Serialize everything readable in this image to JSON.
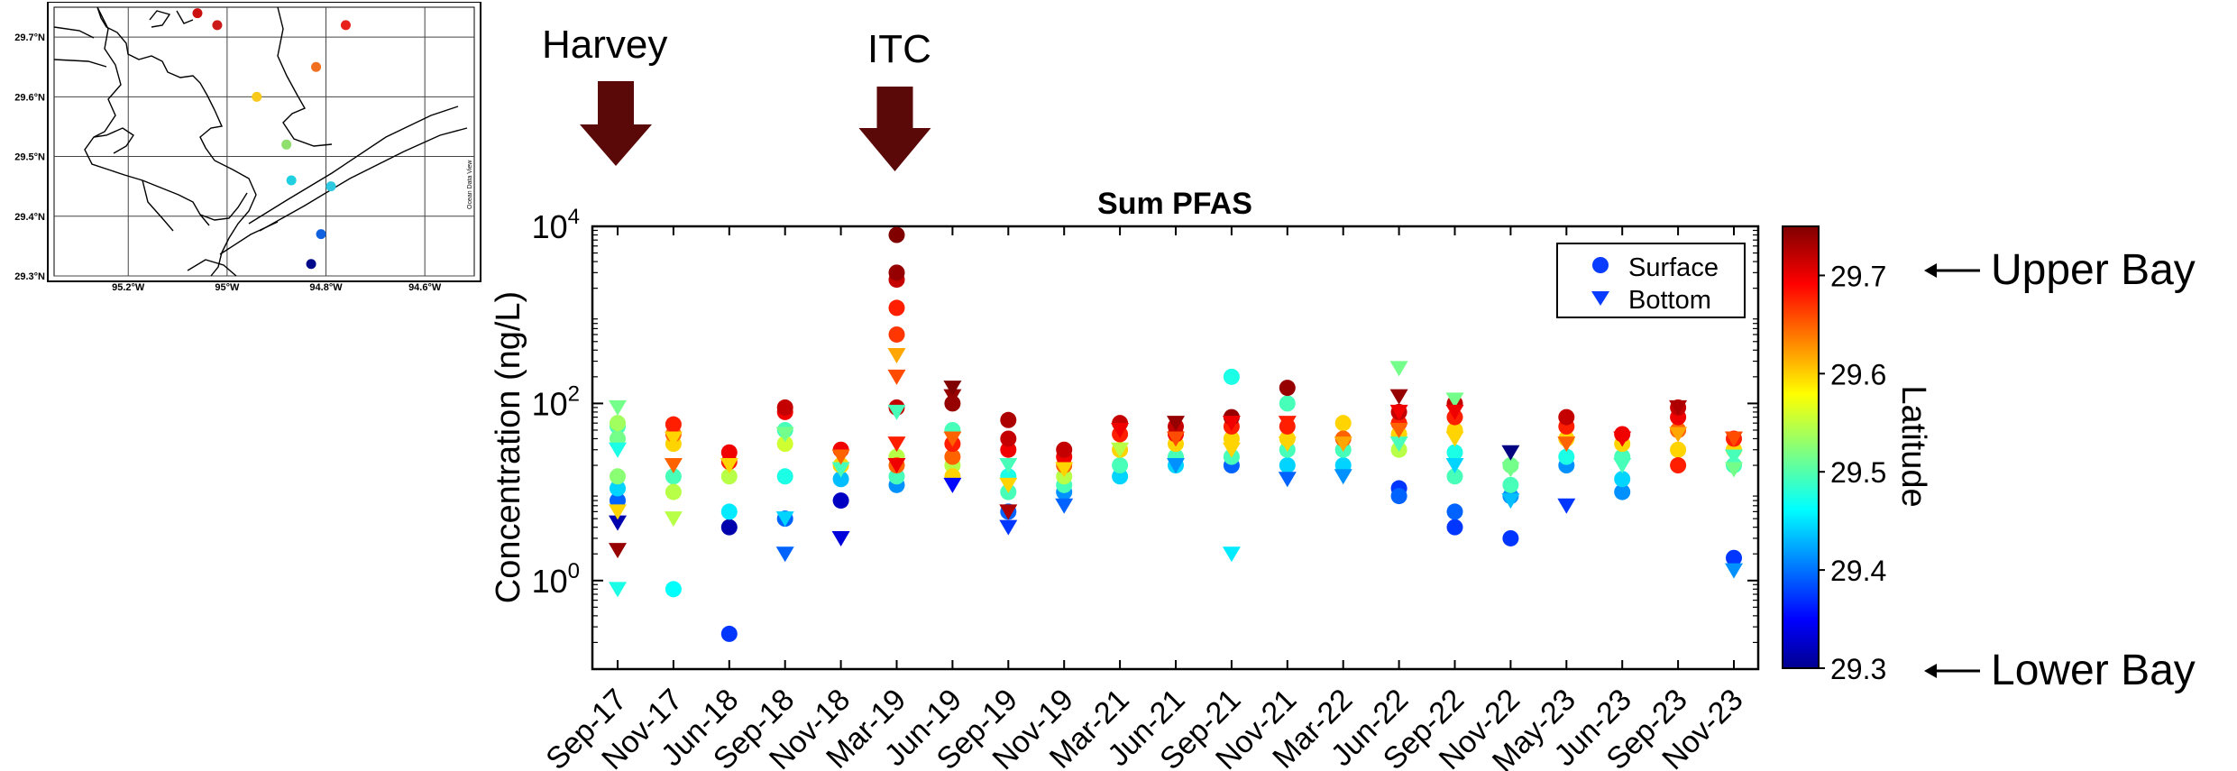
{
  "events": [
    {
      "label": "Harvey",
      "category_index": 0
    },
    {
      "label": "ITC",
      "category_index": 5
    }
  ],
  "annotations": {
    "upper": "Upper Bay",
    "lower": "Lower Bay"
  },
  "map": {
    "lat_labels": [
      "29.7°N",
      "29.6°N",
      "29.5°N",
      "29.4°N",
      "29.3°N"
    ],
    "lon_labels": [
      "95.2°W",
      "95°W",
      "94.8°W",
      "94.6°W"
    ],
    "credit": "Ocean Data View",
    "stations": [
      {
        "lon": -95.06,
        "lat": 29.74,
        "color": "#cc1010"
      },
      {
        "lon": -95.02,
        "lat": 29.72,
        "color": "#cc1a1a"
      },
      {
        "lon": -94.76,
        "lat": 29.72,
        "color": "#e8201a"
      },
      {
        "lon": -94.82,
        "lat": 29.65,
        "color": "#f07020"
      },
      {
        "lon": -94.94,
        "lat": 29.6,
        "color": "#f8c81a"
      },
      {
        "lon": -94.88,
        "lat": 29.52,
        "color": "#90e070"
      },
      {
        "lon": -94.87,
        "lat": 29.46,
        "color": "#20d0e0"
      },
      {
        "lon": -94.79,
        "lat": 29.45,
        "color": "#30c8e0"
      },
      {
        "lon": -94.81,
        "lat": 29.37,
        "color": "#1060e0"
      },
      {
        "lon": -94.83,
        "lat": 29.32,
        "color": "#000a8a"
      }
    ]
  },
  "chart_data": {
    "type": "scatter",
    "title": "Sum PFAS",
    "ylabel": "Concentration (ng/L)",
    "yscale": "log",
    "ylim": [
      0.1,
      10000
    ],
    "y_ticks": [
      "10^0",
      "10^2",
      "10^4"
    ],
    "categories": [
      "Sep-17",
      "Nov-17",
      "Jun-18",
      "Sep-18",
      "Nov-18",
      "Mar-19",
      "Jun-19",
      "Sep-19",
      "Nov-19",
      "Mar-21",
      "Jun-21",
      "Sep-21",
      "Nov-21",
      "Mar-22",
      "Jun-22",
      "Sep-22",
      "Nov-22",
      "May-23",
      "Jun-23",
      "Sep-23",
      "Nov-23"
    ],
    "legend": {
      "placement": "top-right",
      "entries": [
        "Surface",
        "Bottom"
      ]
    },
    "colorbar": {
      "label": "Latitude",
      "min": 29.3,
      "max": 29.75,
      "ticks": [
        "29.3",
        "29.4",
        "29.5",
        "29.6",
        "29.7"
      ]
    },
    "series": [
      {
        "name": "Surface",
        "marker": "circle",
        "points": [
          [
            0,
            8,
            29.4
          ],
          [
            0,
            11,
            29.45
          ],
          [
            0,
            15,
            29.53
          ],
          [
            0,
            40,
            29.52
          ],
          [
            0,
            55,
            29.5
          ],
          [
            0,
            60,
            29.54
          ],
          [
            1,
            0.8,
            29.47
          ],
          [
            1,
            10,
            29.55
          ],
          [
            1,
            15,
            29.5
          ],
          [
            1,
            35,
            29.6
          ],
          [
            1,
            45,
            29.65
          ],
          [
            1,
            58,
            29.68
          ],
          [
            2,
            0.25,
            29.38
          ],
          [
            2,
            4,
            29.32
          ],
          [
            2,
            6,
            29.46
          ],
          [
            2,
            15,
            29.55
          ],
          [
            2,
            22,
            29.68
          ],
          [
            2,
            28,
            29.7
          ],
          [
            3,
            5,
            29.4
          ],
          [
            3,
            15,
            29.48
          ],
          [
            3,
            35,
            29.56
          ],
          [
            3,
            50,
            29.5
          ],
          [
            3,
            80,
            29.7
          ],
          [
            3,
            90,
            29.72
          ],
          [
            4,
            8,
            29.33
          ],
          [
            4,
            14,
            29.44
          ],
          [
            4,
            20,
            29.6
          ],
          [
            4,
            30,
            29.7
          ],
          [
            5,
            12,
            29.42
          ],
          [
            5,
            15,
            29.5
          ],
          [
            5,
            20,
            29.65
          ],
          [
            5,
            25,
            29.55
          ],
          [
            5,
            90,
            29.72
          ],
          [
            5,
            600,
            29.67
          ],
          [
            5,
            1200,
            29.68
          ],
          [
            5,
            2500,
            29.72
          ],
          [
            5,
            3000,
            29.74
          ],
          [
            5,
            8000,
            29.75
          ],
          [
            6,
            15,
            29.6
          ],
          [
            6,
            20,
            29.55
          ],
          [
            6,
            25,
            29.65
          ],
          [
            6,
            35,
            29.68
          ],
          [
            6,
            50,
            29.5
          ],
          [
            6,
            100,
            29.74
          ],
          [
            7,
            6,
            29.4
          ],
          [
            7,
            10,
            29.5
          ],
          [
            7,
            15,
            29.48
          ],
          [
            7,
            30,
            29.7
          ],
          [
            7,
            40,
            29.72
          ],
          [
            7,
            65,
            29.73
          ],
          [
            8,
            10,
            29.42
          ],
          [
            8,
            12,
            29.5
          ],
          [
            8,
            15,
            29.55
          ],
          [
            8,
            20,
            29.65
          ],
          [
            8,
            25,
            29.7
          ],
          [
            8,
            30,
            29.72
          ],
          [
            9,
            15,
            29.45
          ],
          [
            9,
            20,
            29.5
          ],
          [
            9,
            30,
            29.6
          ],
          [
            9,
            45,
            29.68
          ],
          [
            9,
            60,
            29.72
          ],
          [
            10,
            20,
            29.45
          ],
          [
            10,
            25,
            29.5
          ],
          [
            10,
            35,
            29.6
          ],
          [
            10,
            45,
            29.7
          ],
          [
            10,
            55,
            29.72
          ],
          [
            11,
            20,
            29.4
          ],
          [
            11,
            25,
            29.5
          ],
          [
            11,
            40,
            29.6
          ],
          [
            11,
            55,
            29.68
          ],
          [
            11,
            70,
            29.74
          ],
          [
            11,
            200,
            29.48
          ],
          [
            12,
            20,
            29.45
          ],
          [
            12,
            30,
            29.5
          ],
          [
            12,
            40,
            29.6
          ],
          [
            12,
            55,
            29.68
          ],
          [
            12,
            100,
            29.5
          ],
          [
            12,
            150,
            29.74
          ],
          [
            13,
            20,
            29.45
          ],
          [
            13,
            30,
            29.5
          ],
          [
            13,
            40,
            29.65
          ],
          [
            13,
            60,
            29.6
          ],
          [
            14,
            9,
            29.4
          ],
          [
            14,
            11,
            29.38
          ],
          [
            14,
            30,
            29.55
          ],
          [
            14,
            45,
            29.6
          ],
          [
            14,
            60,
            29.68
          ],
          [
            14,
            80,
            29.72
          ],
          [
            15,
            4,
            29.38
          ],
          [
            15,
            6,
            29.4
          ],
          [
            15,
            15,
            29.5
          ],
          [
            15,
            28,
            29.48
          ],
          [
            15,
            50,
            29.6
          ],
          [
            15,
            70,
            29.68
          ],
          [
            15,
            100,
            29.72
          ],
          [
            16,
            3,
            29.38
          ],
          [
            16,
            9,
            29.42
          ],
          [
            16,
            12,
            29.5
          ],
          [
            16,
            20,
            29.52
          ],
          [
            17,
            20,
            29.42
          ],
          [
            17,
            25,
            29.48
          ],
          [
            17,
            40,
            29.6
          ],
          [
            17,
            55,
            29.68
          ],
          [
            17,
            70,
            29.72
          ],
          [
            18,
            10,
            29.42
          ],
          [
            18,
            14,
            29.45
          ],
          [
            18,
            25,
            29.5
          ],
          [
            18,
            35,
            29.6
          ],
          [
            18,
            45,
            29.7
          ],
          [
            19,
            20,
            29.68
          ],
          [
            19,
            30,
            29.6
          ],
          [
            19,
            50,
            29.65
          ],
          [
            19,
            70,
            29.7
          ],
          [
            19,
            90,
            29.72
          ],
          [
            20,
            1.8,
            29.38
          ],
          [
            20,
            20,
            29.5
          ],
          [
            20,
            30,
            29.6
          ],
          [
            20,
            40,
            29.68
          ]
        ]
      },
      {
        "name": "Bottom",
        "marker": "triangle",
        "points": [
          [
            0,
            0.8,
            29.48
          ],
          [
            0,
            2.2,
            29.74
          ],
          [
            0,
            4.5,
            29.32
          ],
          [
            0,
            6,
            29.6
          ],
          [
            0,
            30,
            29.48
          ],
          [
            0,
            90,
            29.52
          ],
          [
            1,
            5,
            29.55
          ],
          [
            1,
            20,
            29.65
          ],
          [
            1,
            40,
            29.6
          ],
          [
            2,
            20,
            29.6
          ],
          [
            3,
            2,
            29.4
          ],
          [
            3,
            5,
            29.45
          ],
          [
            3,
            45,
            29.52
          ],
          [
            4,
            3,
            29.34
          ],
          [
            4,
            18,
            29.5
          ],
          [
            4,
            25,
            29.65
          ],
          [
            5,
            20,
            29.7
          ],
          [
            5,
            35,
            29.68
          ],
          [
            5,
            80,
            29.5
          ],
          [
            5,
            200,
            29.66
          ],
          [
            5,
            350,
            29.62
          ],
          [
            6,
            12,
            29.36
          ],
          [
            6,
            40,
            29.65
          ],
          [
            6,
            120,
            29.74
          ],
          [
            6,
            150,
            29.76
          ],
          [
            7,
            4,
            29.38
          ],
          [
            7,
            6,
            29.73
          ],
          [
            7,
            12,
            29.6
          ],
          [
            7,
            20,
            29.5
          ],
          [
            8,
            7,
            29.4
          ],
          [
            8,
            18,
            29.6
          ],
          [
            9,
            30,
            29.55
          ],
          [
            9,
            50,
            29.7
          ],
          [
            10,
            20,
            29.42
          ],
          [
            10,
            40,
            29.66
          ],
          [
            10,
            60,
            29.74
          ],
          [
            11,
            2,
            29.46
          ],
          [
            11,
            30,
            29.6
          ],
          [
            11,
            60,
            29.7
          ],
          [
            12,
            14,
            29.4
          ],
          [
            12,
            35,
            29.6
          ],
          [
            12,
            60,
            29.68
          ],
          [
            13,
            15,
            29.42
          ],
          [
            13,
            35,
            29.62
          ],
          [
            14,
            35,
            29.5
          ],
          [
            14,
            50,
            29.65
          ],
          [
            14,
            80,
            29.7
          ],
          [
            14,
            120,
            29.74
          ],
          [
            14,
            250,
            29.52
          ],
          [
            15,
            20,
            29.45
          ],
          [
            15,
            40,
            29.6
          ],
          [
            15,
            80,
            29.7
          ],
          [
            15,
            110,
            29.52
          ],
          [
            16,
            8,
            29.44
          ],
          [
            16,
            18,
            29.52
          ],
          [
            16,
            28,
            29.3
          ],
          [
            17,
            7,
            29.38
          ],
          [
            17,
            35,
            29.65
          ],
          [
            18,
            20,
            29.5
          ],
          [
            18,
            40,
            29.7
          ],
          [
            19,
            45,
            29.62
          ],
          [
            19,
            90,
            29.73
          ],
          [
            20,
            1.3,
            29.42
          ],
          [
            20,
            18,
            29.52
          ],
          [
            20,
            25,
            29.5
          ],
          [
            20,
            40,
            29.66
          ]
        ]
      }
    ]
  }
}
